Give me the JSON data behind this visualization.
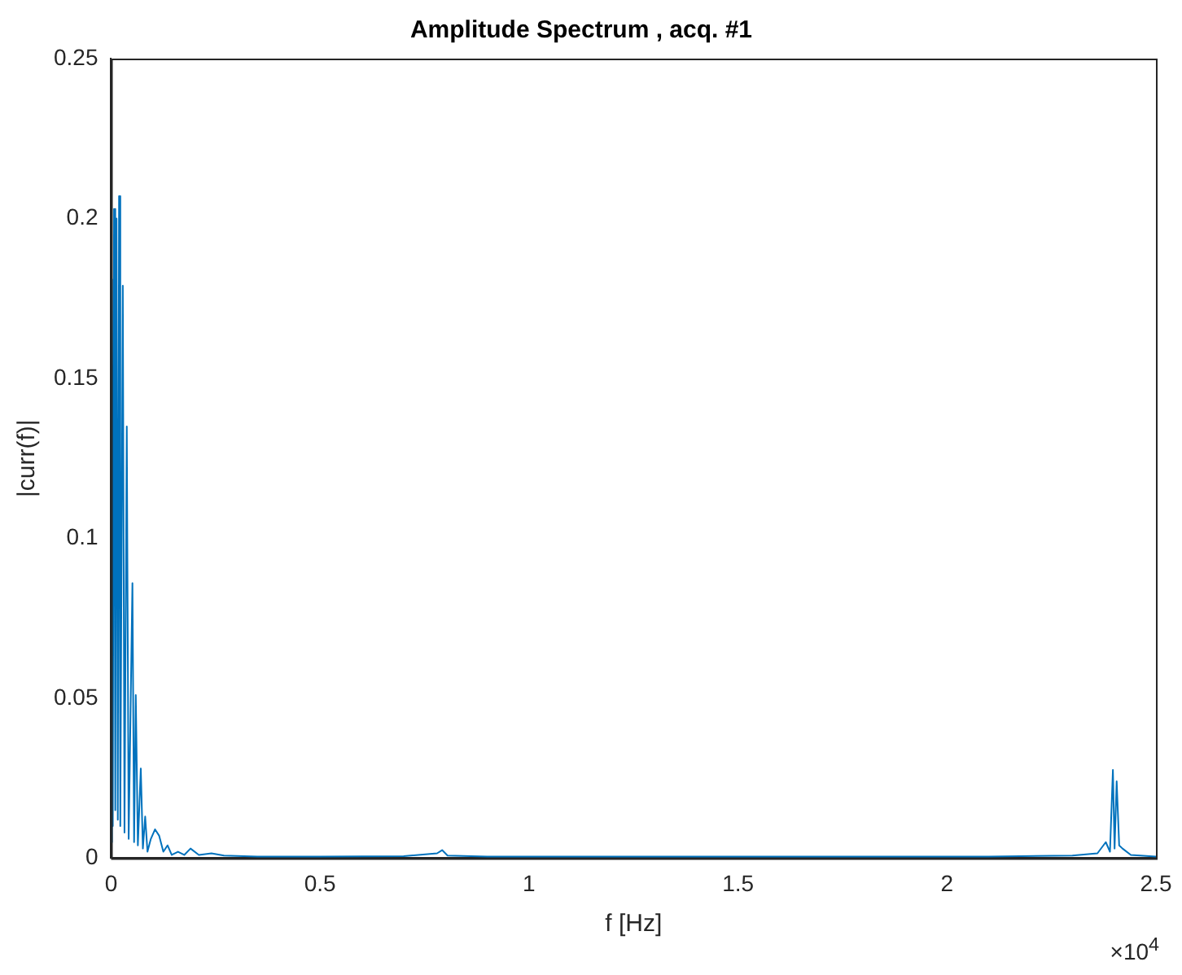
{
  "chart_data": {
    "type": "line",
    "title": "Amplitude Spectrum , acq. #1",
    "xlabel": "f [Hz]",
    "ylabel": "|curr(f)|",
    "annotations": [
      "×10$^{4}$"
    ],
    "x": [
      0,
      0.002,
      0.004,
      0.007,
      0.01,
      0.013,
      0.016,
      0.019,
      0.022,
      0.028,
      0.032,
      0.0375,
      0.042,
      0.051,
      0.055,
      0.059,
      0.064,
      0.071,
      0.076,
      0.0815,
      0.087,
      0.095,
      0.105,
      0.115,
      0.125,
      0.135,
      0.145,
      0.16,
      0.175,
      0.19,
      0.21,
      0.24,
      0.27,
      0.35,
      0.5,
      0.7,
      0.78,
      0.792,
      0.805,
      0.9,
      1.2,
      1.5,
      1.8,
      2.1,
      2.3,
      2.36,
      2.38,
      2.39,
      2.397,
      2.401,
      2.406,
      2.412,
      2.42,
      2.44,
      2.5
    ],
    "series": [
      {
        "color": "#0072bd",
        "values": [
          0.005,
          0.181,
          0.01,
          0.203,
          0.015,
          0.2,
          0.012,
          0.207,
          0.01,
          0.179,
          0.008,
          0.135,
          0.006,
          0.086,
          0.005,
          0.051,
          0.004,
          0.028,
          0.003,
          0.013,
          0.002,
          0.006,
          0.009,
          0.007,
          0.002,
          0.004,
          0.001,
          0.002,
          0.001,
          0.003,
          0.001,
          0.0015,
          0.0008,
          0.0005,
          0.0005,
          0.0006,
          0.0015,
          0.0025,
          0.0008,
          0.0005,
          0.0005,
          0.0005,
          0.0005,
          0.0005,
          0.0008,
          0.0015,
          0.005,
          0.002,
          0.0276,
          0.003,
          0.024,
          0.004,
          0.003,
          0.001,
          0.0005
        ]
      }
    ],
    "xlim": [
      0,
      2.5
    ],
    "xticks": [
      0,
      0.5,
      1,
      1.5,
      2,
      2.5
    ],
    "ylim": [
      0,
      0.25
    ],
    "yticks": [
      0,
      0.05,
      0.1,
      0.15,
      0.2,
      0.25
    ],
    "grid": false,
    "legend": false,
    "marker": "none",
    "line_style": "solid"
  }
}
